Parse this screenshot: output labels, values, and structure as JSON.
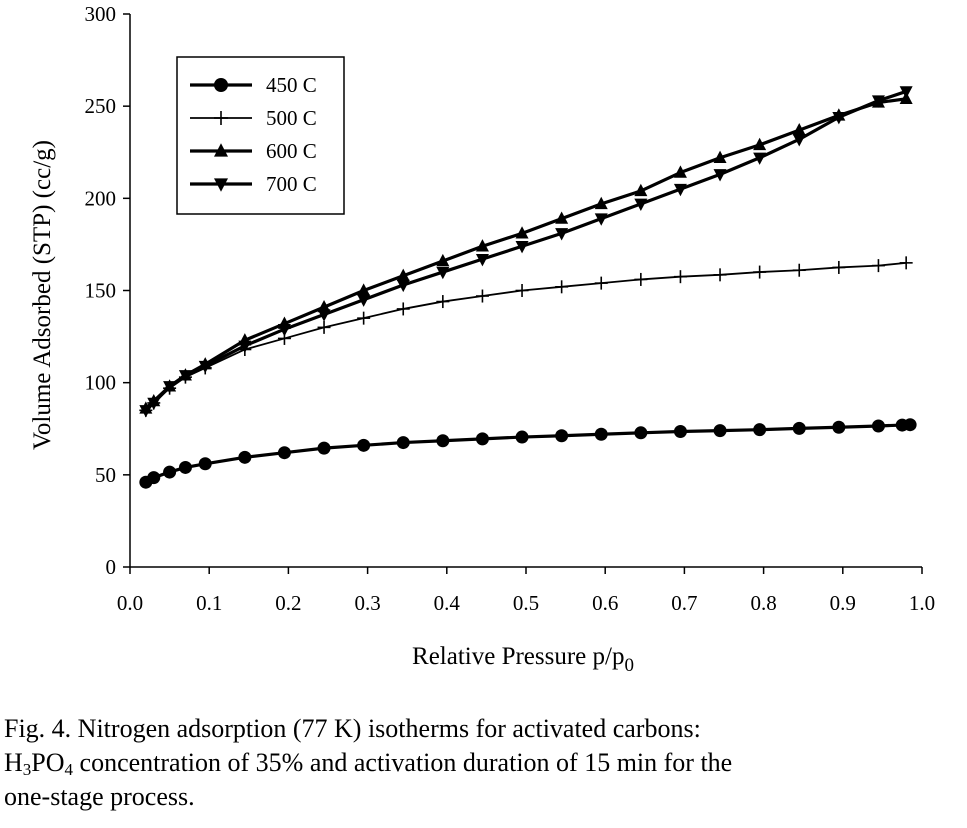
{
  "chart_data": {
    "type": "line",
    "title": "",
    "xlabel": "Relative Pressure p/p",
    "xlabel_sub": "0",
    "ylabel": "Volume Adsorbed (STP) (cc/g)",
    "xlim": [
      0.0,
      1.0
    ],
    "ylim": [
      0,
      300
    ],
    "xticks": [
      "0.0",
      "0.1",
      "0.2",
      "0.3",
      "0.4",
      "0.5",
      "0.6",
      "0.7",
      "0.8",
      "0.9",
      "1.0"
    ],
    "yticks": [
      "0",
      "50",
      "100",
      "150",
      "200",
      "250",
      "300"
    ],
    "grid": false,
    "legend_position": "top-left",
    "series": [
      {
        "name": "450 C",
        "marker": "circle",
        "x": [
          0.02,
          0.03,
          0.05,
          0.07,
          0.095,
          0.145,
          0.195,
          0.245,
          0.295,
          0.345,
          0.395,
          0.445,
          0.495,
          0.545,
          0.595,
          0.645,
          0.695,
          0.745,
          0.795,
          0.845,
          0.895,
          0.945,
          0.975,
          0.985
        ],
        "values": [
          46,
          48.5,
          51.5,
          54,
          56,
          59.5,
          62,
          64.5,
          66,
          67.5,
          68.5,
          69.5,
          70.5,
          71.2,
          72,
          72.8,
          73.5,
          74,
          74.5,
          75.2,
          75.8,
          76.5,
          77,
          77.2
        ]
      },
      {
        "name": "500 C",
        "marker": "plus",
        "x": [
          0.02,
          0.03,
          0.05,
          0.07,
          0.095,
          0.145,
          0.195,
          0.245,
          0.295,
          0.345,
          0.395,
          0.445,
          0.495,
          0.545,
          0.595,
          0.645,
          0.695,
          0.745,
          0.795,
          0.845,
          0.895,
          0.945,
          0.98
        ],
        "values": [
          85,
          89,
          97,
          103,
          108,
          118,
          124,
          130,
          135,
          140,
          144,
          147,
          150,
          152,
          154,
          156,
          157.5,
          158.5,
          160,
          161,
          162.5,
          163.5,
          165
        ]
      },
      {
        "name": "600 C",
        "marker": "triangle-up",
        "x": [
          0.02,
          0.03,
          0.05,
          0.07,
          0.095,
          0.145,
          0.195,
          0.245,
          0.295,
          0.345,
          0.395,
          0.445,
          0.495,
          0.545,
          0.595,
          0.645,
          0.695,
          0.745,
          0.795,
          0.845,
          0.895,
          0.945,
          0.98
        ],
        "values": [
          86,
          90,
          98,
          104,
          110,
          123,
          132,
          141,
          150,
          158,
          166,
          174,
          181,
          189,
          197,
          204,
          214,
          222,
          229,
          237,
          245,
          252,
          254
        ]
      },
      {
        "name": "700 C",
        "marker": "triangle-down",
        "x": [
          0.02,
          0.03,
          0.05,
          0.07,
          0.095,
          0.145,
          0.195,
          0.245,
          0.295,
          0.345,
          0.395,
          0.445,
          0.495,
          0.545,
          0.595,
          0.645,
          0.695,
          0.745,
          0.795,
          0.845,
          0.895,
          0.945,
          0.98
        ],
        "values": [
          85,
          89,
          98,
          104,
          109,
          120,
          129,
          137,
          145,
          153,
          160,
          167,
          174,
          181,
          189,
          197,
          205,
          213,
          222,
          232,
          244,
          253,
          258
        ]
      }
    ]
  },
  "caption": {
    "line1": "Fig. 4. Nitrogen adsorption (77 K) isotherms for activated carbons:",
    "line2_pre": "H",
    "line2_sub1": "3",
    "line2_mid": "PO",
    "line2_sub2": "4",
    "line2_post": " concentration of 35% and activation duration of 15 min for the",
    "line3": "one-stage process."
  }
}
